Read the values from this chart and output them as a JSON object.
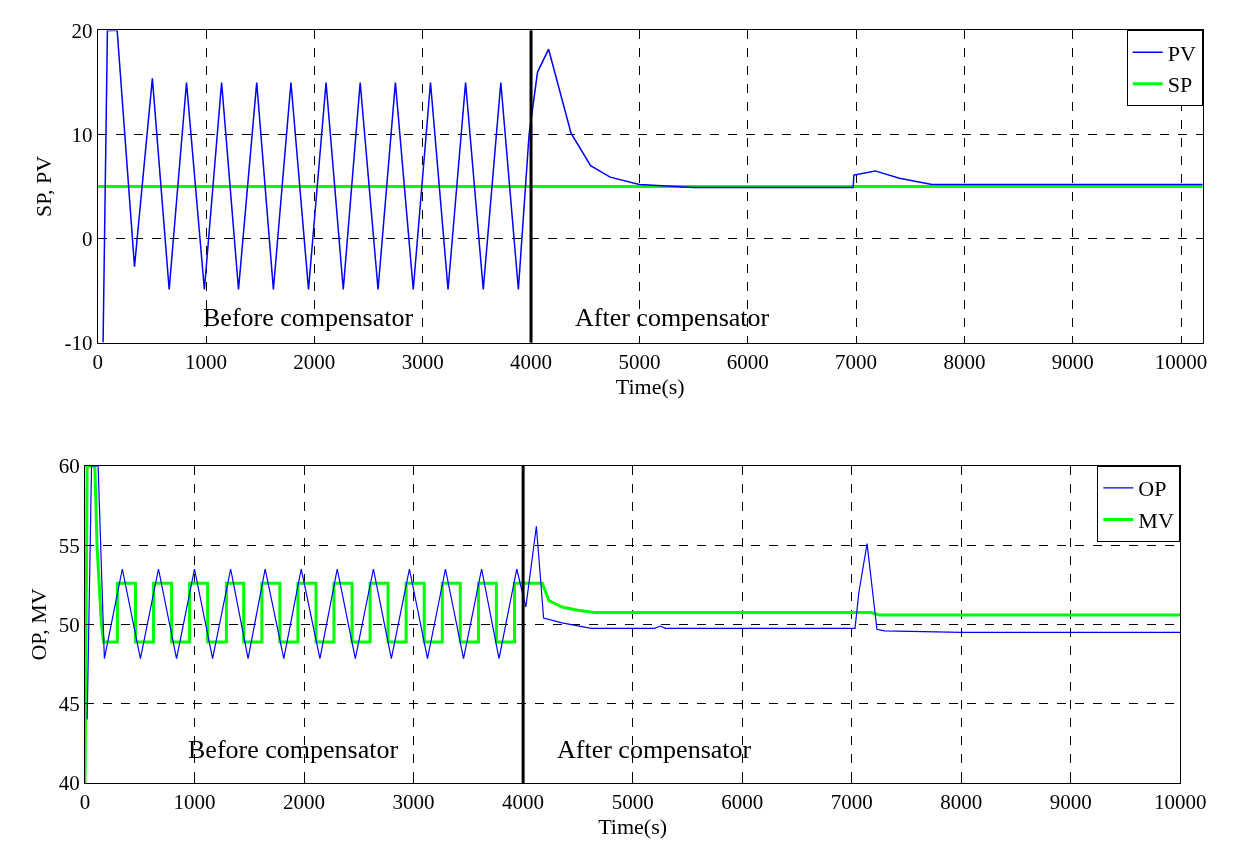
{
  "chart_data": [
    {
      "type": "line",
      "xlabel": "Time(s)",
      "ylabel": "SP, PV",
      "xlim": [
        0,
        10200
      ],
      "ylim": [
        -10,
        20
      ],
      "xticks": [
        0,
        1000,
        2000,
        3000,
        4000,
        5000,
        6000,
        7000,
        8000,
        9000,
        10000
      ],
      "yticks": [
        -10,
        0,
        10,
        20
      ],
      "grid": true,
      "legend": "top right",
      "annotations": [
        "Before compensator",
        "After compensator"
      ],
      "ref_lines": [
        {
          "axis": "x",
          "value": 4000,
          "color": "#000000"
        }
      ],
      "series": [
        {
          "name": "PV",
          "color": "#0000ff",
          "x": [
            50,
            90,
            180,
            340,
            505,
            660,
            820,
            985,
            1144,
            1300,
            1468,
            1622,
            1784,
            1946,
            2108,
            2267,
            2423,
            2588,
            2748,
            2913,
            3072,
            3234,
            3396,
            3559,
            3721,
            3883,
            3982,
            4060,
            4162,
            4370,
            4550,
            4730,
            5000,
            5500,
            6000,
            6500,
            6973,
            6980,
            7177,
            7400,
            7700,
            8000,
            9000,
            10200
          ],
          "values": [
            -10,
            20,
            20,
            -2.7,
            15.4,
            -4.9,
            15,
            -4.9,
            15,
            -4.9,
            15,
            -4.9,
            15,
            -4.9,
            15,
            -4.9,
            15,
            -4.9,
            15,
            -4.9,
            15,
            -4.9,
            15,
            -4.9,
            15,
            -4.9,
            10,
            16,
            18.2,
            10.1,
            7,
            5.9,
            5.2,
            4.9,
            4.9,
            4.9,
            4.9,
            6.1,
            6.5,
            5.8,
            5.2,
            5.2,
            5.2,
            5.2
          ]
        },
        {
          "name": "SP",
          "color": "#00ff00",
          "x": [
            0,
            10200
          ],
          "values": [
            5,
            5
          ]
        }
      ]
    },
    {
      "type": "line",
      "xlabel": "Time(s)",
      "ylabel": "OP, MV",
      "xlim": [
        0,
        10000
      ],
      "ylim": [
        40,
        60
      ],
      "xticks": [
        0,
        1000,
        2000,
        3000,
        4000,
        5000,
        6000,
        7000,
        8000,
        9000,
        10000
      ],
      "yticks": [
        40,
        45,
        50,
        55,
        60
      ],
      "grid": true,
      "legend": "top right",
      "annotations": [
        "Before compensator",
        "After compensator"
      ],
      "ref_lines": [
        {
          "axis": "x",
          "value": 4000,
          "color": "#000000"
        }
      ],
      "series": [
        {
          "name": "OP",
          "color": "#0000ff",
          "x": [
            20,
            60,
            120,
            177,
            341,
            506,
            671,
            836,
            1000,
            1165,
            1330,
            1489,
            1645,
            1815,
            1974,
            2145,
            2303,
            2468,
            2633,
            2797,
            2962,
            3127,
            3291,
            3456,
            3621,
            3780,
            3942,
            4025,
            4121,
            4187,
            4355,
            4624,
            5200,
            5253,
            5300,
            7030,
            7065,
            7140,
            7230,
            7300,
            8000,
            10000
          ],
          "values": [
            44,
            60,
            60,
            47.85,
            53.5,
            47.85,
            53.5,
            47.85,
            53.5,
            47.85,
            53.5,
            47.85,
            53.5,
            47.85,
            53.5,
            47.85,
            53.5,
            47.85,
            53.5,
            47.85,
            53.5,
            47.85,
            53.5,
            47.85,
            53.5,
            47.85,
            53.5,
            51.1,
            56.2,
            50.4,
            50.1,
            49.75,
            49.75,
            49.9,
            49.75,
            49.75,
            52,
            55.1,
            49.7,
            49.6,
            49.5,
            49.5
          ]
        },
        {
          "name": "MV",
          "color": "#00ff00",
          "x": [
            0,
            20,
            90,
            110,
            150,
            170,
            296,
            296,
            461,
            461,
            626,
            626,
            791,
            791,
            955,
            955,
            1120,
            1120,
            1291,
            1291,
            1449,
            1449,
            1615,
            1615,
            1779,
            1779,
            1944,
            1944,
            2109,
            2109,
            2273,
            2273,
            2438,
            2438,
            2603,
            2603,
            2767,
            2767,
            2932,
            2932,
            3097,
            3097,
            3262,
            3262,
            3426,
            3426,
            3592,
            3592,
            3756,
            3756,
            3921,
            3921,
            4175,
            4236,
            4355,
            4500,
            4650,
            7180,
            7250,
            10000
          ],
          "values": [
            40,
            60,
            60,
            55,
            50,
            48.9,
            48.9,
            52.6,
            52.6,
            48.9,
            48.9,
            52.6,
            52.6,
            48.9,
            48.9,
            52.6,
            52.6,
            48.9,
            48.9,
            52.6,
            52.6,
            48.9,
            48.9,
            52.6,
            52.6,
            48.9,
            48.9,
            52.6,
            52.6,
            48.9,
            48.9,
            52.6,
            52.6,
            48.9,
            48.9,
            52.6,
            52.6,
            48.9,
            48.9,
            52.6,
            52.6,
            48.9,
            48.9,
            52.6,
            52.6,
            48.9,
            48.9,
            52.6,
            52.6,
            48.9,
            48.9,
            52.6,
            52.6,
            51.5,
            51.1,
            50.9,
            50.75,
            50.75,
            50.6,
            50.6
          ]
        }
      ]
    }
  ]
}
